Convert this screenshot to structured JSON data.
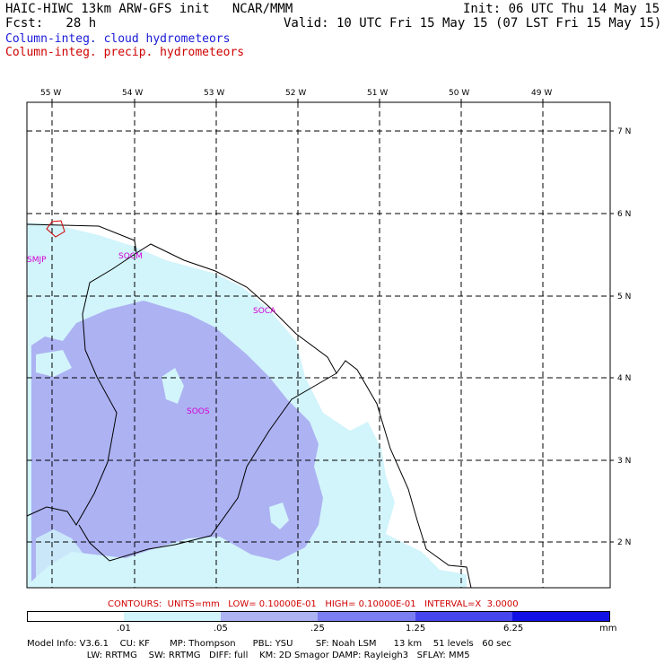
{
  "header": {
    "line1_left": "HAIC-HIWC 13km ARW-GFS init   NCAR/MMM",
    "line1_right": "Init: 06 UTC Thu 14 May 15",
    "line2_left": "Fcst:   28 h",
    "line2_right": "Valid: 10 UTC Fri 15 May 15 (07 LST Fri 15 May 15)",
    "field1": "Column-integ. cloud hydrometeors",
    "field2": "Column-integ. precip. hydrometeors",
    "field1_color": "#1a1ad8",
    "field2_color": "#d00000"
  },
  "map": {
    "lon_labels": [
      "55 W",
      "54 W",
      "53 W",
      "52 W",
      "51 W",
      "50 W",
      "49 W"
    ],
    "lat_labels": [
      "7 N",
      "6 N",
      "5 N",
      "4 N",
      "3 N",
      "2 N"
    ],
    "stations": [
      "SMJP",
      "SOCM",
      "SOCA",
      "SOOS"
    ]
  },
  "contours": "CONTOURS:  UNITS=mm   LOW= 0.10000E-01   HIGH= 0.10000E-01   INTERVAL=X  3.0000",
  "colorbar": {
    "labels": [
      ".01",
      ".05",
      ".25",
      "1.25",
      "6.25",
      "mm"
    ],
    "colors": [
      "#ffffff",
      "#d2f4fb",
      "#acb2f2",
      "#7b7ef0",
      "#4646ee",
      "#1212e6"
    ]
  },
  "model_info": {
    "line1": "Model Info: V3.6.1    CU: KF       MP: Thompson      PBL: YSU        SF: Noah LSM      13 km    51 levels   60 sec",
    "line2": "                     LW: RRTMG    SW: RRTMG   DIFF: full    KM: 2D Smagor DAMP: Rayleigh3   SFLAY: MM5"
  }
}
